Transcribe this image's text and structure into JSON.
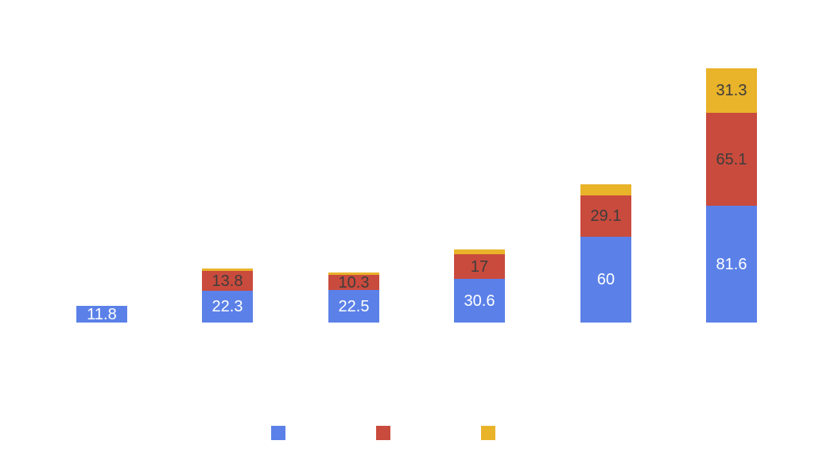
{
  "background_color": "#ffffff",
  "chart_data": {
    "type": "bar",
    "stacked": true,
    "title": "",
    "xlabel": "",
    "ylabel": "",
    "axes_visible": false,
    "grid": false,
    "categories": [
      "",
      "",
      "",
      "",
      "",
      ""
    ],
    "series": [
      {
        "name": "series-1-blue",
        "color": "#5b81e8",
        "label_color": "#ffffff",
        "values": [
          11.8,
          22.3,
          22.5,
          30.6,
          60,
          81.6
        ],
        "data_labels": [
          "11.8",
          "22.3",
          "22.5",
          "30.6",
          "60",
          "81.6"
        ]
      },
      {
        "name": "series-2-red",
        "color": "#c94b3d",
        "label_color": "#3d3d3d",
        "values": [
          0,
          13.8,
          10.3,
          17,
          29.1,
          65.1
        ],
        "data_labels": [
          "",
          "13.8",
          "10.3",
          "17",
          "29.1",
          "65.1"
        ]
      },
      {
        "name": "series-3-yellow",
        "color": "#e9b32a",
        "label_color": "#3d3d3d",
        "values": [
          0,
          1.6,
          1.4,
          3.3,
          7.7,
          31.3
        ],
        "data_labels": [
          "",
          "",
          "",
          "",
          "",
          "31.3"
        ]
      }
    ],
    "legend": {
      "position": "bottom",
      "labels_visible": false,
      "swatch_colors": [
        "#5b81e8",
        "#c94b3d",
        "#e9b32a"
      ]
    }
  }
}
